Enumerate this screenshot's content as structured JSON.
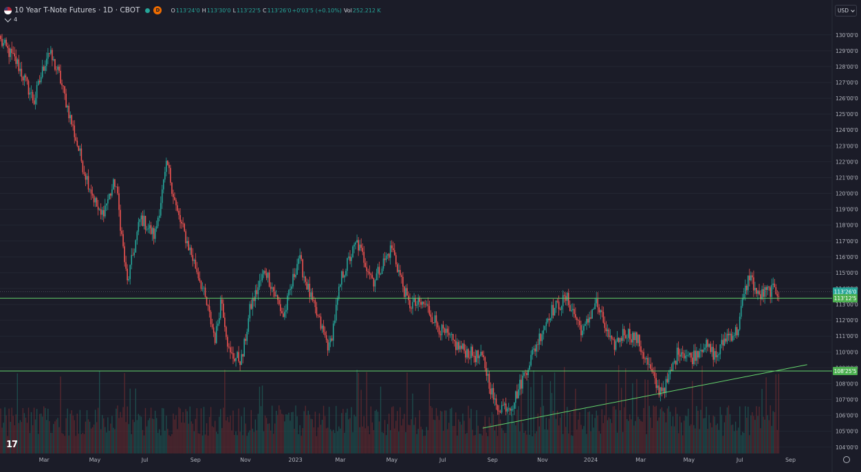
{
  "header": {
    "symbol": "10 Year T-Note Futures · 1D · CBOT",
    "interval_badge": "D",
    "ohlc": [
      {
        "key": "O",
        "value": "113'24'0"
      },
      {
        "key": "H",
        "value": "113'30'0"
      },
      {
        "key": "L",
        "value": "113'22'5"
      },
      {
        "key": "C",
        "value": "113'26'0"
      },
      {
        "key": "",
        "value": "+0'03'5 (+0.10%)"
      },
      {
        "key": "Vol",
        "value": "252.212 K"
      }
    ],
    "indicator_count": "4",
    "currency": "USD"
  },
  "logo": "17",
  "chart_data": {
    "type": "candlestick",
    "x_ticks": [
      "Mar",
      "May",
      "Jul",
      "Sep",
      "Nov",
      "2023",
      "Mar",
      "May",
      "Jul",
      "Sep",
      "Nov",
      "2024",
      "Mar",
      "May",
      "Jul",
      "Sep"
    ],
    "y_ticks": [
      "104'00'0",
      "105'00'0",
      "106'00'0",
      "107'00'0",
      "108'00'0",
      "109'00'0",
      "110'00'0",
      "111'00'0",
      "112'00'0",
      "113'00'0",
      "114'00'0",
      "115'00'0",
      "116'00'0",
      "117'00'0",
      "118'00'0",
      "119'00'0",
      "120'00'0",
      "121'00'0",
      "122'00'0",
      "123'00'0",
      "124'00'0",
      "125'00'0",
      "126'00'0",
      "127'00'0",
      "128'00'0",
      "129'00'0",
      "130'00'0"
    ],
    "ylim": [
      103.6,
      130.9
    ],
    "price_labels": [
      {
        "text": "113'26'0",
        "value": 113.8125,
        "color": "#26a69a"
      },
      {
        "text": "113'12'5",
        "value": 113.39,
        "color": "#4caf50"
      },
      {
        "text": "108'25'5",
        "value": 108.8,
        "color": "#4caf50"
      }
    ],
    "horizontal_lines": [
      113.39,
      108.8
    ],
    "trendline": [
      [
        0.58,
        105.2
      ],
      [
        0.97,
        109.2
      ]
    ],
    "key_closes": [
      [
        0.0,
        129.6
      ],
      [
        0.02,
        128.2
      ],
      [
        0.04,
        125.8
      ],
      [
        0.057,
        129.0
      ],
      [
        0.07,
        127.5
      ],
      [
        0.1,
        121.5
      ],
      [
        0.12,
        118.5
      ],
      [
        0.138,
        120.8
      ],
      [
        0.152,
        114.3
      ],
      [
        0.168,
        118.5
      ],
      [
        0.185,
        117.3
      ],
      [
        0.2,
        121.9
      ],
      [
        0.212,
        118.8
      ],
      [
        0.24,
        114.5
      ],
      [
        0.258,
        110.8
      ],
      [
        0.265,
        113.5
      ],
      [
        0.275,
        109.8
      ],
      [
        0.29,
        109.5
      ],
      [
        0.3,
        112.8
      ],
      [
        0.318,
        115.2
      ],
      [
        0.34,
        112.2
      ],
      [
        0.358,
        116.0
      ],
      [
        0.375,
        113.0
      ],
      [
        0.395,
        110.2
      ],
      [
        0.41,
        114.8
      ],
      [
        0.428,
        116.9
      ],
      [
        0.448,
        114.5
      ],
      [
        0.47,
        116.6
      ],
      [
        0.49,
        113.0
      ],
      [
        0.51,
        113.0
      ],
      [
        0.53,
        111.3
      ],
      [
        0.55,
        110.3
      ],
      [
        0.58,
        109.5
      ],
      [
        0.595,
        106.5
      ],
      [
        0.615,
        106.7
      ],
      [
        0.64,
        110.0
      ],
      [
        0.66,
        112.5
      ],
      [
        0.68,
        113.4
      ],
      [
        0.7,
        111.2
      ],
      [
        0.715,
        113.2
      ],
      [
        0.735,
        110.3
      ],
      [
        0.75,
        111.3
      ],
      [
        0.765,
        110.8
      ],
      [
        0.778,
        109.2
      ],
      [
        0.79,
        107.6
      ],
      [
        0.8,
        107.9
      ],
      [
        0.815,
        110.2
      ],
      [
        0.83,
        109.6
      ],
      [
        0.845,
        110.5
      ],
      [
        0.86,
        109.7
      ],
      [
        0.872,
        111.0
      ],
      [
        0.885,
        111.3
      ],
      [
        0.893,
        113.5
      ],
      [
        0.9,
        114.9
      ],
      [
        0.91,
        113.5
      ],
      [
        0.925,
        113.9
      ],
      [
        0.935,
        113.8
      ]
    ]
  }
}
